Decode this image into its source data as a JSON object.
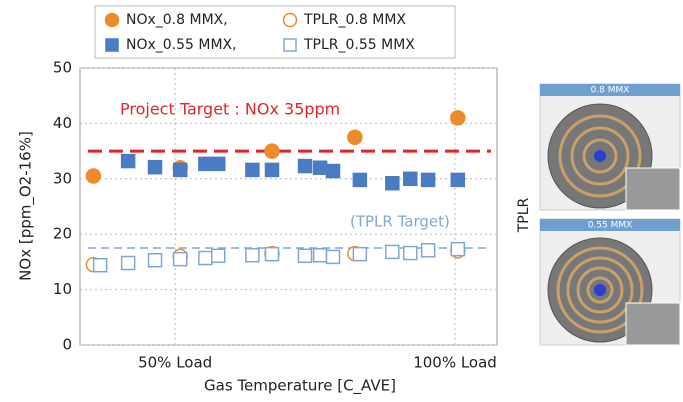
{
  "chart_data": {
    "type": "scatter",
    "xlabel": "Gas Temperature [C_AVE]",
    "ylabel": "NOx [ppm_O2-16%]",
    "xlim": [
      33,
      107.5
    ],
    "xticks": [
      {
        "value": 50,
        "label": "50% Load"
      },
      {
        "value": 100,
        "label": "100% Load"
      }
    ],
    "ylim": [
      0,
      50
    ],
    "yticks": [
      0,
      10,
      20,
      30,
      40,
      50
    ],
    "grid": true,
    "series": [
      {
        "name": "NOx_0.8 MMX,",
        "color": "#ee8a2a",
        "marker": "circle",
        "filled": true,
        "x": [
          35.4,
          50.9,
          67.3,
          82.1,
          100.5
        ],
        "values": [
          30.5,
          32,
          35,
          37.5,
          41
        ]
      },
      {
        "name": "TPLR_0.8 MMX",
        "color": "#ee8a2a",
        "marker": "circle",
        "filled": false,
        "x": [
          35.4,
          50.9,
          67.3,
          82.1,
          100.5
        ],
        "values": [
          14.5,
          16,
          16.5,
          16.5,
          17
        ]
      },
      {
        "name": "NOx_0.55 MMX,",
        "color": "#4a7cc4",
        "marker": "square",
        "filled": true,
        "x": [
          41.6,
          46.4,
          50.9,
          55.4,
          57.7,
          63.8,
          67.3,
          73.2,
          75.9,
          78.2,
          83,
          88.8,
          92,
          95.2,
          100.5
        ],
        "values": [
          33.2,
          32.1,
          31.6,
          32.7,
          32.7,
          31.6,
          31.6,
          32.3,
          32,
          31.4,
          29.8,
          29.2,
          30,
          29.8,
          29.8
        ]
      },
      {
        "name": "TPLR_0.55 MMX",
        "color": "#7fa7d6",
        "marker": "square",
        "filled": false,
        "x": [
          36.6,
          41.6,
          46.4,
          50.9,
          55.4,
          57.7,
          63.8,
          67.3,
          73.2,
          75.9,
          78.2,
          83,
          88.8,
          92,
          95.2,
          100.5
        ],
        "values": [
          14.4,
          14.8,
          15.3,
          15.5,
          15.7,
          16.1,
          16.2,
          16.4,
          16.1,
          16.2,
          15.9,
          16.4,
          16.8,
          16.6,
          17.1,
          17.3
        ]
      }
    ],
    "reference_lines": [
      {
        "value": 35,
        "label": "Project Target : NOx 35ppm",
        "color": "#e0262a"
      },
      {
        "value": 17.5,
        "label": "(TPLR Target)",
        "color": "#7fa7d6"
      }
    ]
  },
  "side_panel": {
    "label": "TPLR",
    "images": [
      "0.8 MMX",
      "0.55 MMX"
    ]
  }
}
